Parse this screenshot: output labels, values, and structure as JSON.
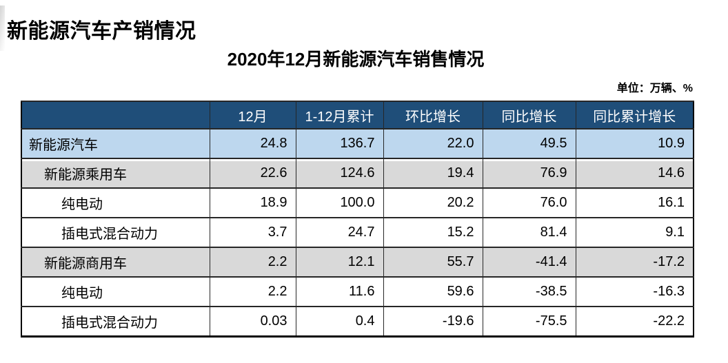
{
  "page": {
    "title": "新能源汽车产销情况",
    "subtitle": "2020年12月新能源汽车销售情况",
    "unit_note": "单位：万辆、%"
  },
  "table": {
    "columns": [
      "",
      "12月",
      "1-12月累计",
      "环比增长",
      "同比增长",
      "同比累计增长"
    ],
    "rows": [
      {
        "label": "新能源汽车",
        "level": "total",
        "indent": 0,
        "values": [
          "24.8",
          "136.7",
          "22.0",
          "49.5",
          "10.9"
        ]
      },
      {
        "label": "新能源乘用车",
        "level": "group",
        "indent": 1,
        "values": [
          "22.6",
          "124.6",
          "19.4",
          "76.9",
          "14.6"
        ]
      },
      {
        "label": "纯电动",
        "level": "sub",
        "indent": 2,
        "values": [
          "18.9",
          "100.0",
          "20.2",
          "76.0",
          "16.1"
        ]
      },
      {
        "label": "插电式混合动力",
        "level": "sub",
        "indent": 2,
        "values": [
          "3.7",
          "24.7",
          "15.2",
          "81.4",
          "9.1"
        ]
      },
      {
        "label": "新能源商用车",
        "level": "group",
        "indent": 1,
        "values": [
          "2.2",
          "12.1",
          "55.7",
          "-41.4",
          "-17.2"
        ]
      },
      {
        "label": "纯电动",
        "level": "sub",
        "indent": 2,
        "values": [
          "2.2",
          "11.6",
          "59.6",
          "-38.5",
          "-16.3"
        ]
      },
      {
        "label": "插电式混合动力",
        "level": "sub",
        "indent": 2,
        "values": [
          "0.03",
          "0.4",
          "-19.6",
          "-75.5",
          "-22.2"
        ]
      }
    ]
  },
  "colors": {
    "header_bg": "#1F4E79",
    "header_text": "#FFFFFF",
    "row_total_bg": "#BDD7EE",
    "row_group_bg": "#D9D9D9",
    "row_sub_bg": "#FFFFFF",
    "border": "#262626"
  }
}
